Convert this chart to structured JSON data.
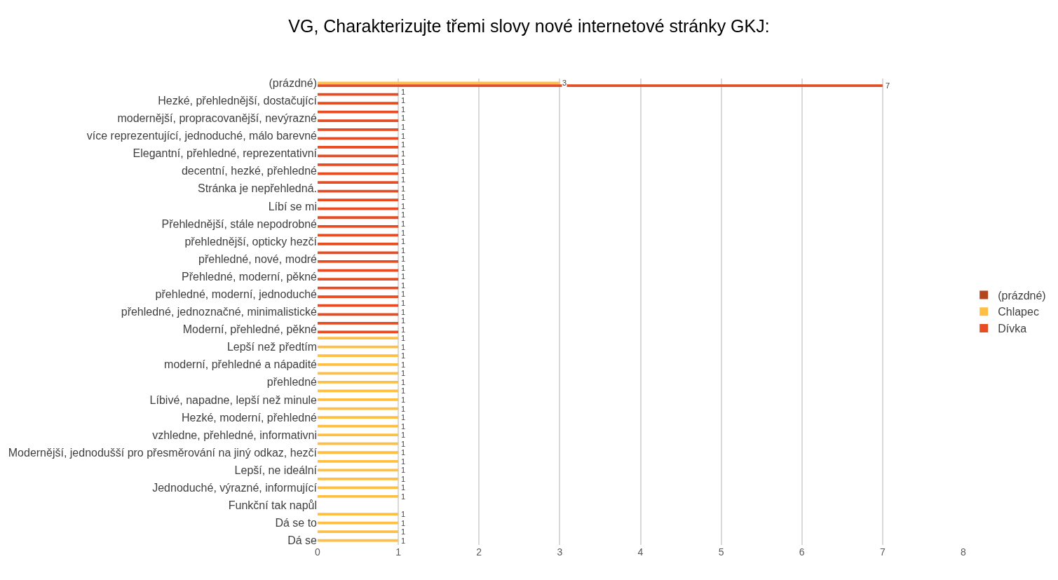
{
  "chart_data": {
    "type": "bar",
    "orientation": "horizontal",
    "title": "VG, Charakterizujte třemi slovy nové internetové stránky GKJ:",
    "categories": [
      "(prázdné)",
      null,
      "Hezké, přehlednější, dostačující",
      null,
      "modernější, propracovanější, nevýrazné",
      null,
      "více reprezentující, jednoduché, málo barevné",
      null,
      "Elegantní, přehledné, reprezentativní",
      null,
      "decentní, hezké, přehledné",
      null,
      "Stránka je nepřehledná.",
      null,
      "Líbí se mi",
      null,
      "Přehlednější, stále nepodrobné",
      null,
      "přehlednější, opticky hezčí",
      null,
      "přehledné, nové, modré",
      null,
      "Přehledné, moderní, pěkné",
      null,
      "přehledné, moderní, jednoduché",
      null,
      "přehledné, jednoznačné, minimalistické",
      null,
      "Moderní, přehledné, pěkné",
      null,
      "Lepší než předtím",
      null,
      "moderní, přehledné a nápadité",
      null,
      "přehledné",
      null,
      "Líbivé, napadne, lepší než minule",
      null,
      "Hezké, moderní, přehledné",
      null,
      "vzhledne, přehledné, informativni",
      null,
      "Modernější, jednodušší pro přesměrování na jiný odkaz, hezčí",
      null,
      "Lepší, ne ideální",
      null,
      "Jednoduché, výrazné, informující",
      null,
      "Funkční tak napůl",
      null,
      "Dá se to",
      null,
      "Dá se"
    ],
    "series": [
      {
        "name": "(prázdné)",
        "color": "#b5451c",
        "values": [
          null,
          null,
          null,
          null,
          null,
          null,
          null,
          null,
          null,
          null,
          null,
          null,
          null,
          null,
          null,
          null,
          null,
          null,
          null,
          null,
          null,
          null,
          null,
          null,
          null,
          null,
          null,
          null,
          null,
          null,
          null,
          null,
          null,
          null,
          null,
          null,
          null,
          null,
          null,
          null,
          null,
          null,
          null,
          null,
          null,
          null,
          null,
          null,
          null,
          null,
          null,
          null,
          null
        ]
      },
      {
        "name": "Chlapec",
        "color": "#ffbf43",
        "values": [
          3,
          null,
          null,
          null,
          null,
          null,
          null,
          null,
          null,
          null,
          null,
          null,
          null,
          null,
          null,
          null,
          null,
          null,
          null,
          null,
          null,
          null,
          null,
          null,
          null,
          null,
          null,
          null,
          null,
          1,
          1,
          1,
          1,
          1,
          1,
          1,
          1,
          1,
          1,
          1,
          1,
          1,
          1,
          1,
          1,
          1,
          1,
          1,
          null,
          1,
          1,
          1,
          1
        ]
      },
      {
        "name": "Dívka",
        "color": "#e84c22",
        "values": [
          7,
          1,
          1,
          1,
          1,
          1,
          1,
          1,
          1,
          1,
          1,
          1,
          1,
          1,
          1,
          1,
          1,
          1,
          1,
          1,
          1,
          1,
          1,
          1,
          1,
          1,
          1,
          1,
          1,
          null,
          null,
          null,
          null,
          null,
          null,
          null,
          null,
          null,
          null,
          null,
          null,
          null,
          null,
          null,
          null,
          null,
          null,
          null,
          null,
          null,
          null,
          null,
          null
        ]
      }
    ],
    "xlim": [
      0,
      8
    ],
    "xticks": [
      0,
      1,
      2,
      3,
      4,
      5,
      6,
      7,
      8
    ],
    "grid": "x",
    "legend": "right",
    "data_labels": true
  }
}
